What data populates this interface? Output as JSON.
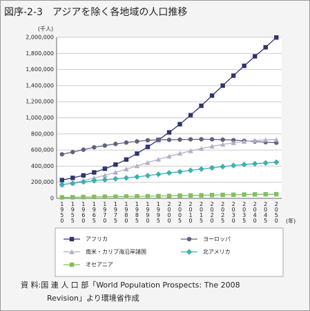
{
  "chart_data": {
    "type": "line",
    "title": "図序-2-3　アジアを除く各地域の人口推移",
    "y_unit": "(千人)",
    "x_unit": "(年)",
    "source": [
      "資 料:国 連 人 口 部「World Population Prospects: The 2008",
      "Revision」より環境省作成"
    ],
    "categories": [
      "1950",
      "1955",
      "1960",
      "1965",
      "1970",
      "1975",
      "1980",
      "1985",
      "1990",
      "1995",
      "2000",
      "2005",
      "2010",
      "2015",
      "2020",
      "2025",
      "2030",
      "2035",
      "2040",
      "2045",
      "2050"
    ],
    "ylim": [
      0,
      2000000
    ],
    "yticks": [
      {
        "value": 0,
        "label": "0"
      },
      {
        "value": 200000,
        "label": "200,000"
      },
      {
        "value": 400000,
        "label": "400,000"
      },
      {
        "value": 600000,
        "label": "600,000"
      },
      {
        "value": 800000,
        "label": "800,000"
      },
      {
        "value": 1000000,
        "label": "1,000,000"
      },
      {
        "value": 1200000,
        "label": "1,200,000"
      },
      {
        "value": 1400000,
        "label": "1,400,000"
      },
      {
        "value": 1600000,
        "label": "1,600,000"
      },
      {
        "value": 1800000,
        "label": "1,800,000"
      },
      {
        "value": 2000000,
        "label": "2,000,000"
      }
    ],
    "grid": true,
    "series": [
      {
        "name": "アフリカ",
        "color": "#2e3470",
        "marker": "square",
        "values": [
          227000,
          254000,
          285000,
          322000,
          367000,
          419000,
          482000,
          556000,
          639000,
          726000,
          819000,
          921000,
          1033000,
          1150000,
          1276000,
          1400000,
          1524000,
          1646000,
          1764000,
          1876000,
          1998000
        ]
      },
      {
        "name": "ヨーロッパ",
        "color": "#606080",
        "marker": "circle",
        "values": [
          547000,
          575000,
          604000,
          634000,
          656000,
          676000,
          693000,
          707000,
          721000,
          727000,
          727000,
          730000,
          733000,
          734000,
          733000,
          729000,
          723000,
          715000,
          706000,
          697000,
          691000
        ]
      },
      {
        "name": "南米・カリブ海沿岸諸国",
        "color": "#b0b0c8",
        "marker": "triangle",
        "values": [
          167000,
          191000,
          220000,
          253000,
          286000,
          323000,
          363000,
          403000,
          443000,
          483000,
          522000,
          557000,
          589000,
          618000,
          646000,
          670000,
          690000,
          706000,
          718000,
          726000,
          729000
        ]
      },
      {
        "name": "北アメリカ",
        "color": "#3ab0b0",
        "marker": "diamond",
        "values": [
          172000,
          187000,
          204000,
          219000,
          231000,
          243000,
          254000,
          267000,
          282000,
          299000,
          316000,
          331000,
          348000,
          364000,
          379000,
          394000,
          408000,
          420000,
          430000,
          440000,
          448000
        ]
      },
      {
        "name": "オセアニア",
        "color": "#80c060",
        "marker": "square",
        "values": [
          13000,
          14000,
          16000,
          18000,
          20000,
          21000,
          23000,
          25000,
          27000,
          29000,
          31000,
          34000,
          36000,
          38000,
          41000,
          43000,
          45000,
          47000,
          49000,
          50000,
          51000
        ]
      }
    ]
  }
}
